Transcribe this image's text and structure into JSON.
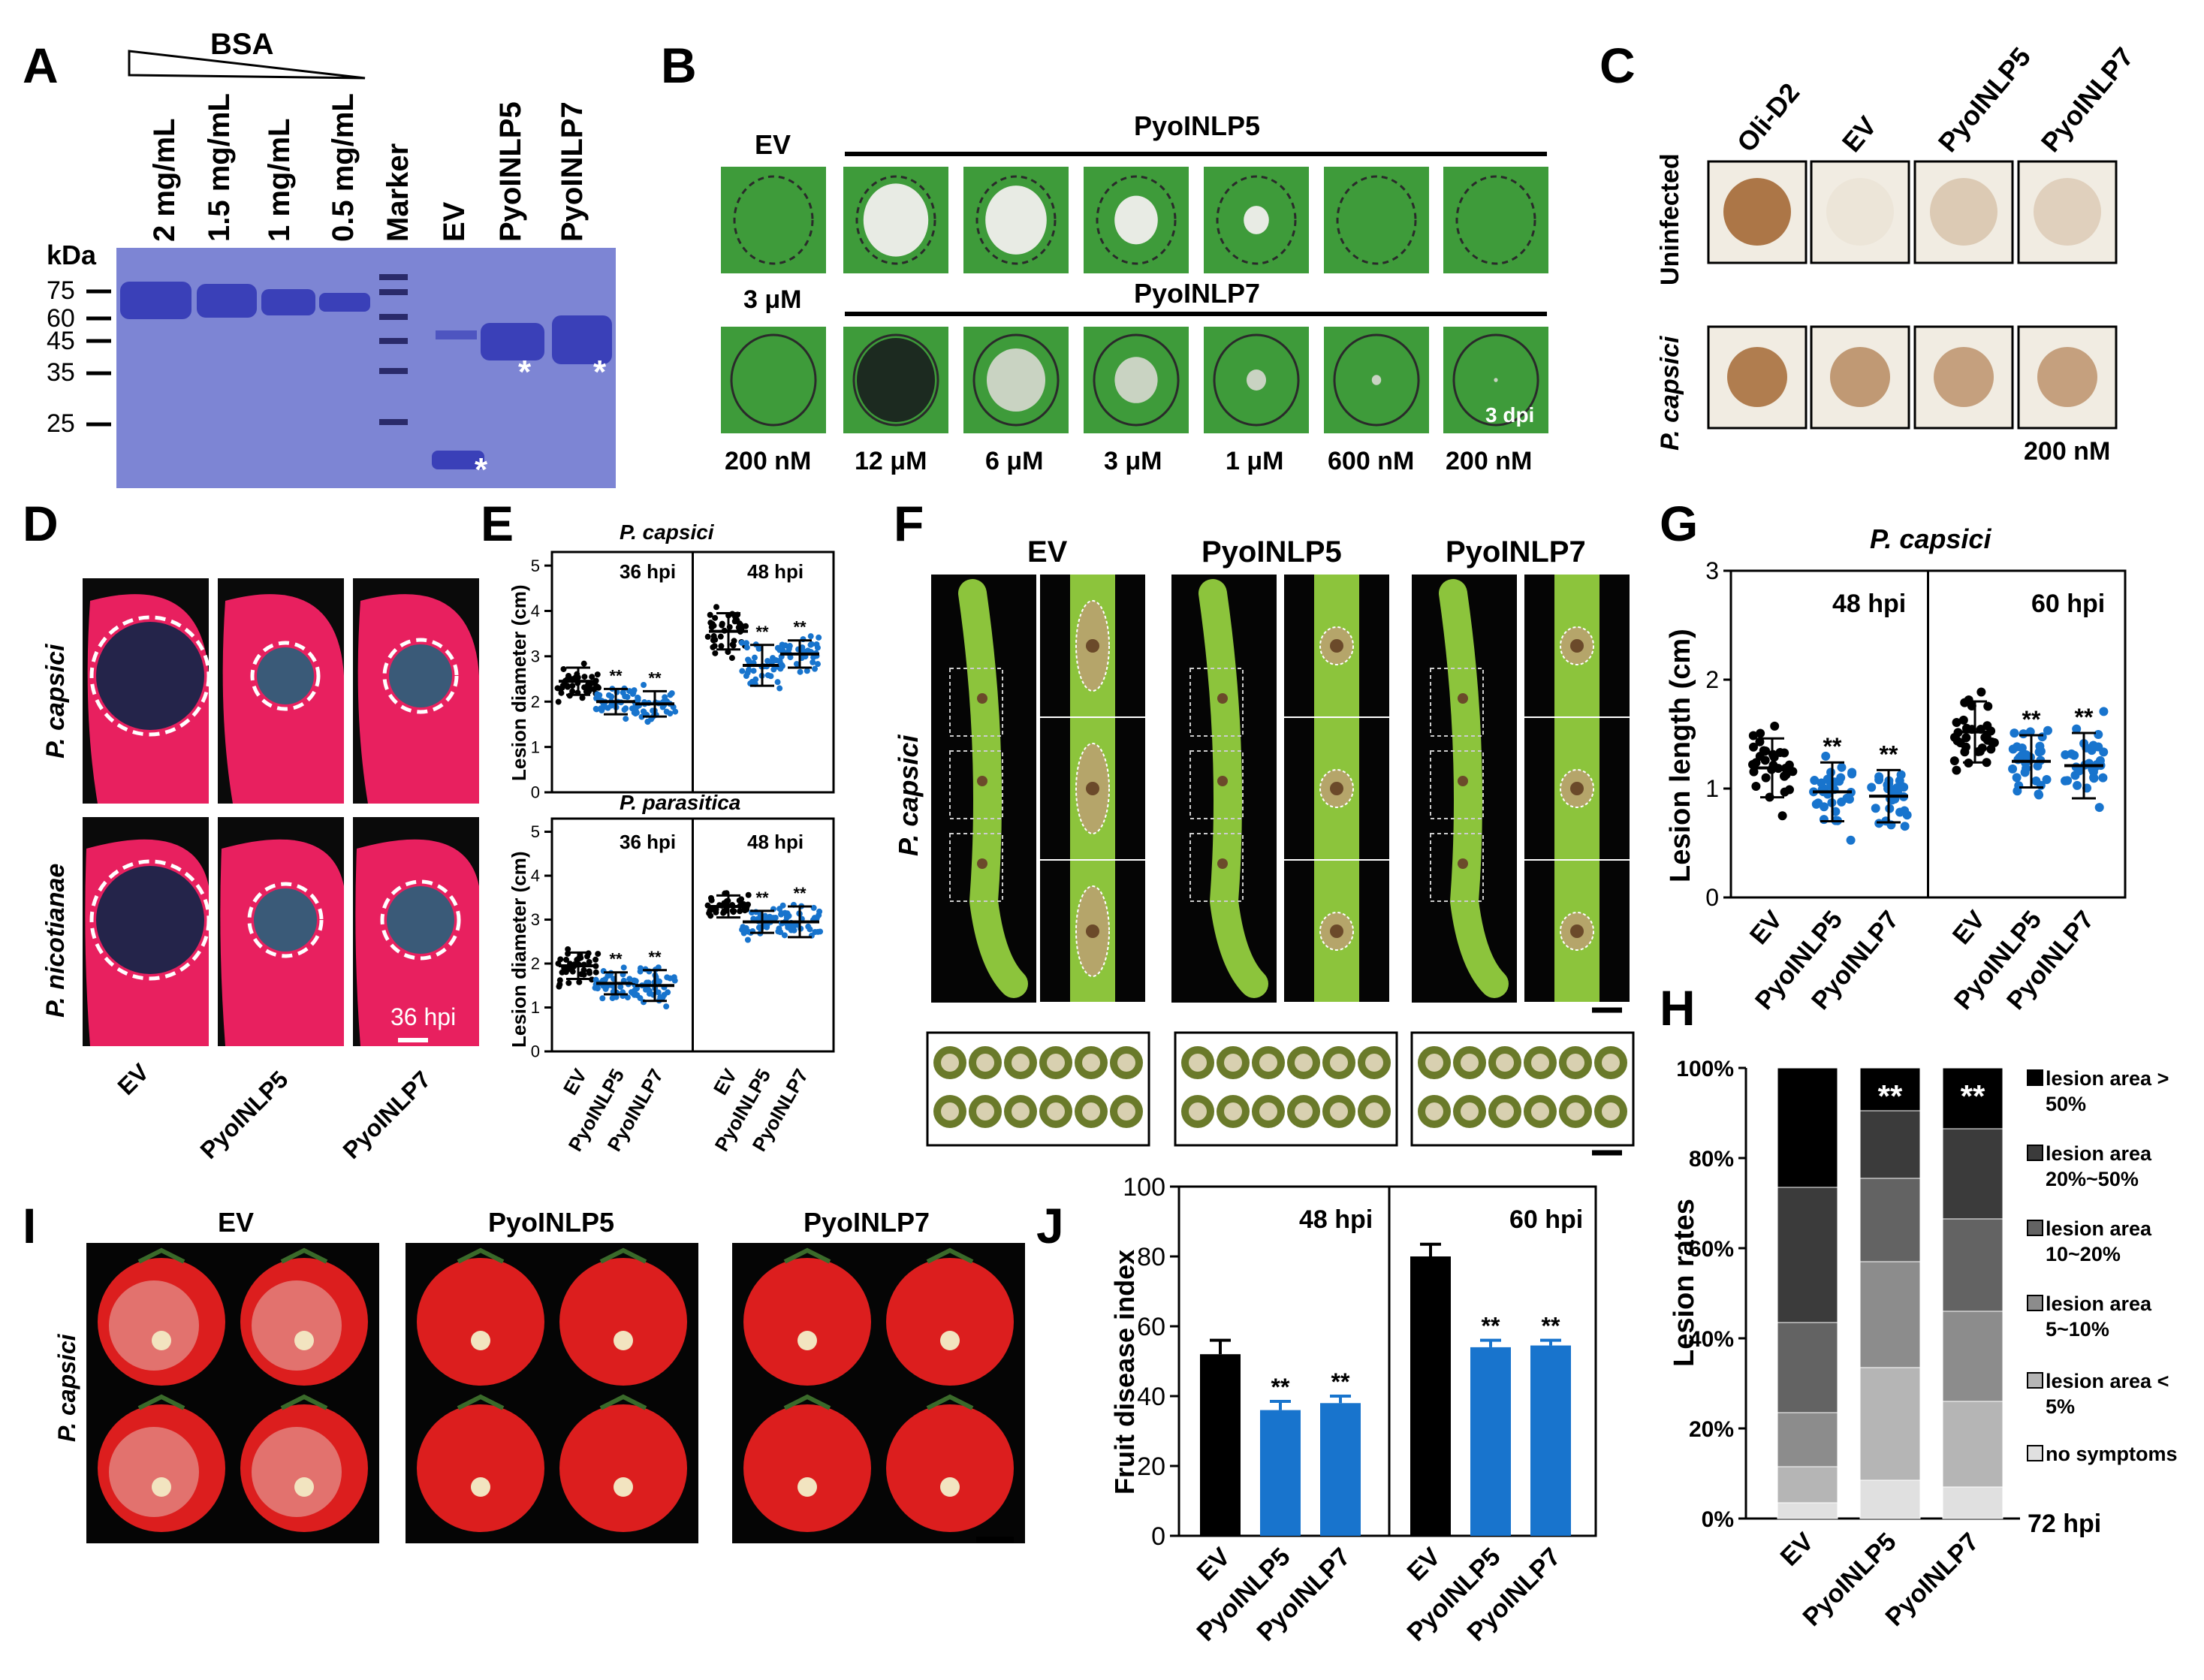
{
  "panel_labels": [
    "A",
    "B",
    "C",
    "D",
    "E",
    "F",
    "G",
    "H",
    "I",
    "J"
  ],
  "A": {
    "bsa_label": "BSA",
    "kda_label": "kDa",
    "lanes": [
      "2 mg/mL",
      "1.5 mg/mL",
      "1 mg/mL",
      "0.5 mg/mL",
      "Marker",
      "EV",
      "PyoINLP5",
      "PyoINLP7"
    ],
    "markers": [
      "75",
      "60",
      "45",
      "35",
      "25"
    ],
    "star": "*"
  },
  "B": {
    "ev": "EV",
    "row1_title": "PyoINLP5",
    "row2_title": "PyoINLP7",
    "row1_ev_conc": "3 μM",
    "concs": [
      "200 nM",
      "12 μM",
      "6 μM",
      "3 μM",
      "1 μM",
      "600 nM",
      "200 nM"
    ],
    "dpi": "3 dpi"
  },
  "C": {
    "cols": [
      "Oli-D2",
      "EV",
      "PyoINLP5",
      "PyoINLP7"
    ],
    "rows": [
      "Uninfected",
      "P. capsici"
    ],
    "conc": "200 nM"
  },
  "D": {
    "rows": [
      "P. capsici",
      "P. nicotianae"
    ],
    "cols": [
      "EV",
      "PyoINLP5",
      "PyoINLP7"
    ],
    "time": "36 hpi"
  },
  "E": {
    "top_title": "P. capsici",
    "bottom_title": "P. parasitica",
    "ylabel": "Lesion diameter (cm)",
    "yticks": [
      "0",
      "1",
      "2",
      "3",
      "4",
      "5"
    ],
    "times": [
      "36 hpi",
      "48 hpi"
    ],
    "xlabels": [
      "EV",
      "PyoINLP5",
      "PyoINLP7",
      "EV",
      "PyoINLP5",
      "PyoINLP7"
    ],
    "sig": "**"
  },
  "F": {
    "cols": [
      "EV",
      "PyoINLP5",
      "PyoINLP7"
    ],
    "row": "P. capsici"
  },
  "G": {
    "title": "P. capsici",
    "ylabel": "Lesion length (cm)",
    "yticks": [
      "0",
      "1",
      "2",
      "3"
    ],
    "times": [
      "48 hpi",
      "60 hpi"
    ],
    "xlabels": [
      "EV",
      "PyoINLP5",
      "PyoINLP7",
      "EV",
      "PyoINLP5",
      "PyoINLP7"
    ],
    "sig": "**"
  },
  "H": {
    "ylabel": "Lesion rates",
    "yticks": [
      "0%",
      "20%",
      "40%",
      "60%",
      "80%",
      "100%"
    ],
    "xlabels": [
      "EV",
      "PyoINLP5",
      "PyoINLP7"
    ],
    "time": "72 hpi",
    "sig": "**",
    "legend": [
      [
        "lesion area >",
        "50%"
      ],
      [
        "lesion area",
        "20%~50%"
      ],
      [
        "lesion area",
        "10~20%"
      ],
      [
        "lesion area",
        "5~10%"
      ],
      [
        "lesion area <",
        "5%"
      ],
      [
        "no symptoms",
        ""
      ]
    ]
  },
  "I": {
    "cols": [
      "EV",
      "PyoINLP5",
      "PyoINLP7"
    ],
    "row": "P. capsici"
  },
  "J": {
    "ylabel": "Fruit disease index",
    "yticks": [
      "0",
      "20",
      "40",
      "60",
      "80",
      "100"
    ],
    "times": [
      "48 hpi",
      "60 hpi"
    ],
    "xlabels": [
      "EV",
      "PyoINLP5",
      "PyoINLP7",
      "EV",
      "PyoINLP5",
      "PyoINLP7"
    ],
    "sig": "**"
  },
  "chart_data": [
    {
      "type": "bar",
      "panel": "J",
      "ylabel": "Fruit disease index",
      "ylim": [
        0,
        100
      ],
      "categories": [
        "EV",
        "PyoINLP5",
        "PyoINLP7",
        "EV",
        "PyoINLP5",
        "PyoINLP7"
      ],
      "groups": [
        "48 hpi",
        "48 hpi",
        "48 hpi",
        "60 hpi",
        "60 hpi",
        "60 hpi"
      ],
      "values": [
        52,
        36,
        38,
        80,
        54,
        54.5
      ],
      "errors": [
        4,
        2.5,
        2,
        3.5,
        2,
        1.5
      ],
      "colors": [
        "#000000",
        "#1874cd",
        "#1874cd",
        "#000000",
        "#1874cd",
        "#1874cd"
      ]
    },
    {
      "type": "bar",
      "panel": "H",
      "stacked": true,
      "ylabel": "Lesion rates",
      "ylim": [
        0,
        100
      ],
      "categories": [
        "EV",
        "PyoINLP5",
        "PyoINLP7"
      ],
      "series": [
        {
          "name": "no symptoms",
          "values": [
            3.5,
            8.5,
            7
          ],
          "color": "#e0e0e0"
        },
        {
          "name": "lesion area < 5%",
          "values": [
            8,
            25,
            19
          ],
          "color": "#b5b5b5"
        },
        {
          "name": "lesion area 5~10%",
          "values": [
            12,
            23.5,
            20
          ],
          "color": "#8c8c8c"
        },
        {
          "name": "lesion area 10~20%",
          "values": [
            20,
            18.5,
            20.5
          ],
          "color": "#636363"
        },
        {
          "name": "lesion area 20%~50%",
          "values": [
            30,
            15,
            20
          ],
          "color": "#3b3b3b"
        },
        {
          "name": "lesion area > 50%",
          "values": [
            26.5,
            9.5,
            13.5
          ],
          "color": "#000000"
        }
      ]
    },
    {
      "type": "scatter",
      "panel": "G",
      "title": "P. capsici",
      "ylabel": "Lesion length (cm)",
      "ylim": [
        0,
        3
      ],
      "categories": [
        "EV",
        "PyoINLP5",
        "PyoINLP7",
        "EV",
        "PyoINLP5",
        "PyoINLP7"
      ],
      "groups": [
        "48 hpi",
        "48 hpi",
        "48 hpi",
        "60 hpi",
        "60 hpi",
        "60 hpi"
      ],
      "means": [
        1.19,
        0.97,
        0.93,
        1.52,
        1.25,
        1.21
      ],
      "sd": [
        0.27,
        0.27,
        0.24,
        0.28,
        0.24,
        0.3
      ],
      "colors": [
        "#000000",
        "#1874cd",
        "#1874cd",
        "#000000",
        "#1874cd",
        "#1874cd"
      ]
    },
    {
      "type": "scatter",
      "panel": "E-top",
      "title": "P. capsici",
      "ylabel": "Lesion diameter (cm)",
      "ylim": [
        0,
        5
      ],
      "categories": [
        "EV",
        "PyoINLP5",
        "PyoINLP7",
        "EV",
        "PyoINLP5",
        "PyoINLP7"
      ],
      "groups": [
        "36 hpi",
        "36 hpi",
        "36 hpi",
        "48 hpi",
        "48 hpi",
        "48 hpi"
      ],
      "means": [
        2.45,
        2.0,
        1.95,
        3.55,
        2.8,
        3.05
      ],
      "sd": [
        0.3,
        0.28,
        0.28,
        0.4,
        0.45,
        0.3
      ],
      "colors": [
        "#000000",
        "#1874cd",
        "#1874cd",
        "#000000",
        "#1874cd",
        "#1874cd"
      ]
    },
    {
      "type": "scatter",
      "panel": "E-bottom",
      "title": "P. parasitica",
      "ylabel": "Lesion diameter (cm)",
      "ylim": [
        0,
        5
      ],
      "categories": [
        "EV",
        "PyoINLP5",
        "PyoINLP7",
        "EV",
        "PyoINLP5",
        "PyoINLP7"
      ],
      "groups": [
        "36 hpi",
        "36 hpi",
        "36 hpi",
        "48 hpi",
        "48 hpi",
        "48 hpi"
      ],
      "means": [
        1.95,
        1.55,
        1.5,
        3.3,
        2.95,
        2.95
      ],
      "sd": [
        0.3,
        0.25,
        0.35,
        0.25,
        0.25,
        0.35
      ],
      "colors": [
        "#000000",
        "#1874cd",
        "#1874cd",
        "#000000",
        "#1874cd",
        "#1874cd"
      ]
    }
  ]
}
